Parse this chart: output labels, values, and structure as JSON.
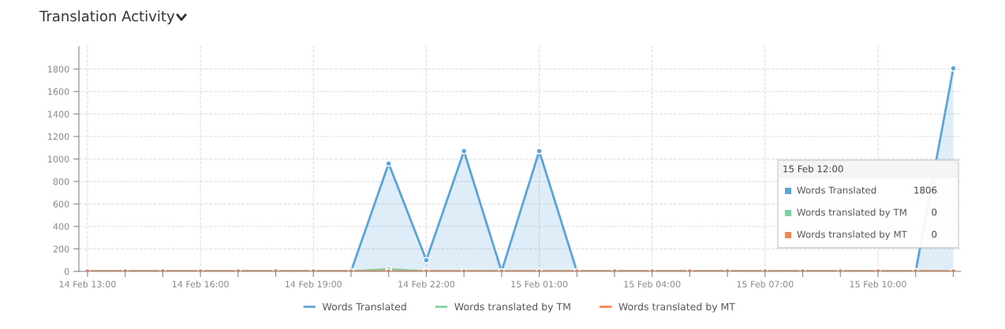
{
  "chart_data": {
    "type": "area",
    "title": "Translation Activity",
    "categories": [
      "14 Feb 13:00",
      null,
      null,
      "14 Feb 16:00",
      null,
      null,
      "14 Feb 19:00",
      null,
      null,
      "14 Feb 22:00",
      null,
      null,
      "15 Feb 01:00",
      null,
      null,
      "15 Feb 04:00",
      null,
      null,
      "15 Feb 07:00",
      null,
      null,
      "15 Feb 10:00",
      null,
      null
    ],
    "series": [
      {
        "name": "Words Translated",
        "color": "#5ba4d8",
        "values": [
          0,
          0,
          0,
          0,
          0,
          0,
          0,
          0,
          960,
          100,
          1070,
          0,
          1070,
          0,
          0,
          0,
          0,
          0,
          0,
          0,
          0,
          0,
          0,
          1806
        ]
      },
      {
        "name": "Words translated by TM",
        "color": "#7fd39c",
        "values": [
          0,
          0,
          0,
          0,
          0,
          0,
          0,
          0,
          20,
          0,
          0,
          0,
          0,
          0,
          0,
          0,
          0,
          0,
          0,
          0,
          0,
          0,
          0,
          0
        ]
      },
      {
        "name": "Words translated by MT",
        "type": "line",
        "color": "#f0854f",
        "values": [
          0,
          0,
          0,
          0,
          0,
          0,
          0,
          0,
          0,
          0,
          0,
          0,
          0,
          0,
          0,
          0,
          0,
          0,
          0,
          0,
          0,
          0,
          0,
          0
        ]
      }
    ],
    "ylim": [
      0,
      2000
    ],
    "yticks": [
      0,
      200,
      400,
      600,
      800,
      1000,
      1200,
      1400,
      1600,
      1800
    ],
    "grid": true,
    "legend": "bottom",
    "marker": "circle",
    "line_style": "solid",
    "annotations": [
      "15 Feb 12:00",
      "1806",
      "0",
      "0"
    ]
  }
}
